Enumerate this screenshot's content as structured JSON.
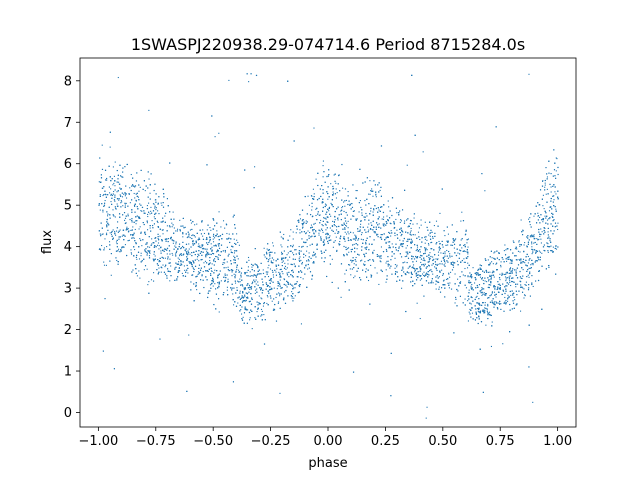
{
  "chart_data": {
    "type": "scatter",
    "title": "1SWASPJ220938.29-074714.6 Period 8715284.0s",
    "xlabel": "phase",
    "ylabel": "flux",
    "xlim": [
      -1.08,
      1.08
    ],
    "ylim": [
      -0.35,
      8.55
    ],
    "xticks": [
      -1.0,
      -0.75,
      -0.5,
      -0.25,
      0.0,
      0.25,
      0.5,
      0.75,
      1.0
    ],
    "xtick_labels": [
      "−1.00",
      "−0.75",
      "−0.50",
      "−0.25",
      "0.00",
      "0.25",
      "0.50",
      "0.75",
      "1.00"
    ],
    "yticks": [
      0,
      1,
      2,
      3,
      4,
      5,
      6,
      7,
      8
    ],
    "ytick_labels": [
      "0",
      "1",
      "2",
      "3",
      "4",
      "5",
      "6",
      "7",
      "8"
    ],
    "grid": false,
    "legend": "none",
    "marker_color": "#1f77b4",
    "series": [
      {
        "phase": [
          -1.0,
          -0.9,
          -0.8,
          -0.75,
          -0.7,
          -0.65,
          -0.55,
          -0.5,
          -0.45,
          -0.4,
          -0.375,
          -0.35,
          -0.3,
          -0.25,
          -0.2,
          -0.15,
          -0.1,
          -0.05,
          0.0,
          0.05,
          0.1,
          0.15,
          0.2,
          0.25,
          0.3,
          0.35,
          0.45,
          0.5,
          0.55,
          0.6,
          0.625,
          0.65,
          0.7,
          0.75,
          0.8,
          0.85,
          0.9,
          0.95,
          1.0
        ],
        "flux_center": [
          4.7,
          4.9,
          4.5,
          4.3,
          4.2,
          3.9,
          3.8,
          3.6,
          3.8,
          3.5,
          2.8,
          2.9,
          3.0,
          3.3,
          3.4,
          3.6,
          4.1,
          4.6,
          4.8,
          4.7,
          4.2,
          4.4,
          4.6,
          4.2,
          4.0,
          3.9,
          3.8,
          3.6,
          3.7,
          3.5,
          2.8,
          2.9,
          3.0,
          3.2,
          3.4,
          3.6,
          4.1,
          4.7,
          4.9
        ],
        "flux_spread": [
          1.2,
          1.0,
          1.1,
          1.0,
          0.9,
          0.7,
          0.7,
          0.8,
          0.8,
          0.9,
          0.6,
          0.7,
          0.7,
          0.7,
          0.7,
          0.8,
          0.9,
          1.0,
          1.1,
          1.0,
          0.9,
          1.0,
          1.0,
          0.9,
          0.8,
          0.7,
          0.7,
          0.8,
          0.8,
          0.9,
          0.6,
          0.7,
          0.7,
          0.7,
          0.7,
          0.8,
          0.9,
          1.0,
          1.2
        ]
      }
    ]
  }
}
